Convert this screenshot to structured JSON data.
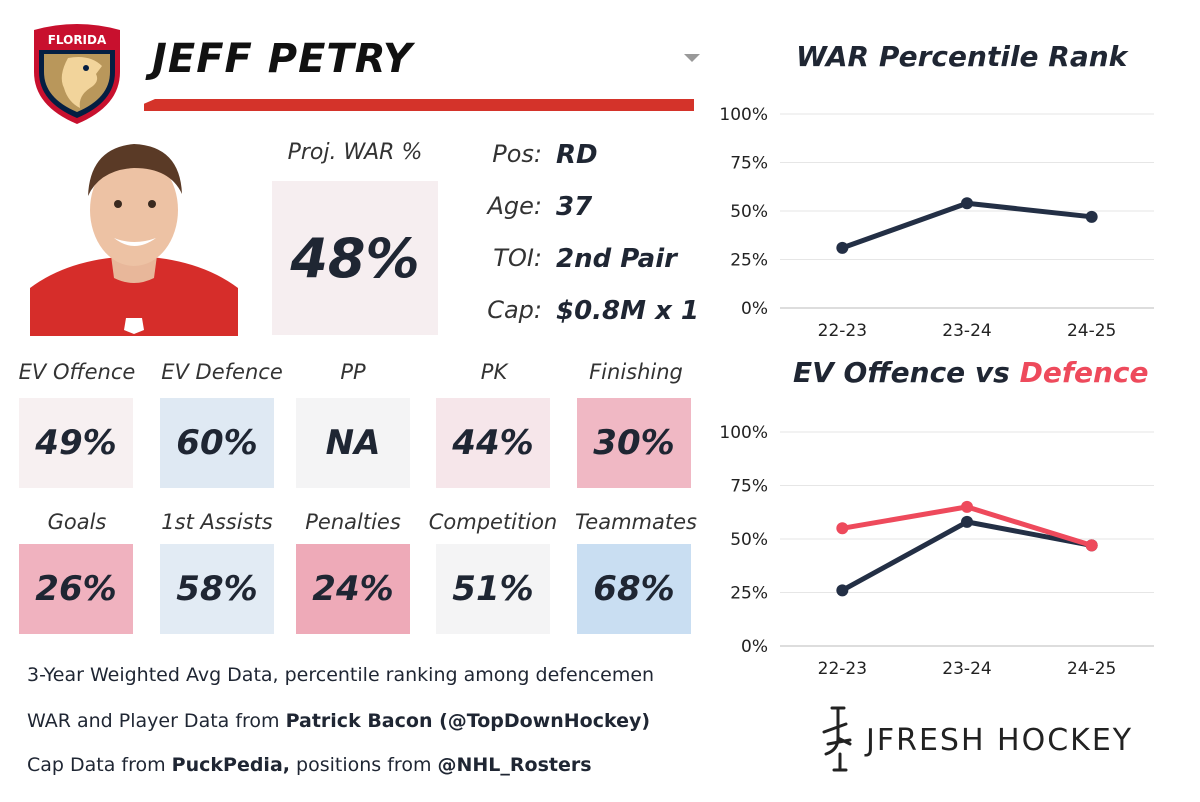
{
  "player": {
    "name": "JEFF PETRY",
    "team_logo_text": "FLORIDA"
  },
  "proj_war": {
    "label": "Proj. WAR %",
    "value": "48%"
  },
  "info": [
    {
      "label": "Pos:",
      "value": "RD"
    },
    {
      "label": "Age:",
      "value": "37"
    },
    {
      "label": "TOI:",
      "value": "2nd Pair"
    },
    {
      "label": "Cap:",
      "value": "$0.8M x 1"
    }
  ],
  "metrics": [
    {
      "label": "EV Offence",
      "value": "49%",
      "color": "#f7f0f1"
    },
    {
      "label": "EV Defence",
      "value": "60%",
      "color": "#dfe9f3"
    },
    {
      "label": "PP",
      "value": "NA",
      "color": "#f4f4f5"
    },
    {
      "label": "PK",
      "value": "44%",
      "color": "#f6e6ea"
    },
    {
      "label": "Finishing",
      "value": "30%",
      "color": "#f0b8c4"
    },
    {
      "label": "Goals",
      "value": "26%",
      "color": "#f0b2bf"
    },
    {
      "label": "1st Assists",
      "value": "58%",
      "color": "#e2ebf4"
    },
    {
      "label": "Penalties",
      "value": "24%",
      "color": "#eeaab8"
    },
    {
      "label": "Competition",
      "value": "51%",
      "color": "#f4f4f5"
    },
    {
      "label": "Teammates",
      "value": "68%",
      "color": "#c9def2"
    }
  ],
  "footer": {
    "line1": "3-Year Weighted Avg Data, percentile ranking among defencemen",
    "line2_pre": "WAR and Player Data from ",
    "line2_bold": "Patrick Bacon (@TopDownHockey)",
    "line3_pre": "Cap Data from ",
    "line3_bold1": "PuckPedia,",
    "line3_mid": " positions from ",
    "line3_bold2": "@NHL_Rosters"
  },
  "brand": {
    "text": "JFRESH HOCKEY"
  },
  "colors": {
    "navy": "#232f45",
    "red": "#ee4a5c",
    "accent_bar": "#d4332a"
  },
  "chart_data": [
    {
      "type": "line",
      "title": "WAR Percentile Rank",
      "x": [
        "22-23",
        "23-24",
        "24-25"
      ],
      "yticks": [
        "100%",
        "75%",
        "50%",
        "25%",
        "0%"
      ],
      "ylim": [
        0,
        100
      ],
      "grid": true,
      "series": [
        {
          "values": [
            31,
            54,
            47
          ],
          "color": "#232f45"
        }
      ]
    },
    {
      "type": "line",
      "title_part1": "EV Offence vs ",
      "title_part2": "Defence",
      "x": [
        "22-23",
        "23-24",
        "24-25"
      ],
      "yticks": [
        "100%",
        "75%",
        "50%",
        "25%",
        "0%"
      ],
      "ylim": [
        0,
        100
      ],
      "grid": true,
      "series": [
        {
          "name": "EV Offence",
          "values": [
            26,
            58,
            47
          ],
          "color": "#232f45"
        },
        {
          "name": "Defence",
          "values": [
            55,
            65,
            47
          ],
          "color": "#ee4a5c"
        }
      ]
    }
  ]
}
